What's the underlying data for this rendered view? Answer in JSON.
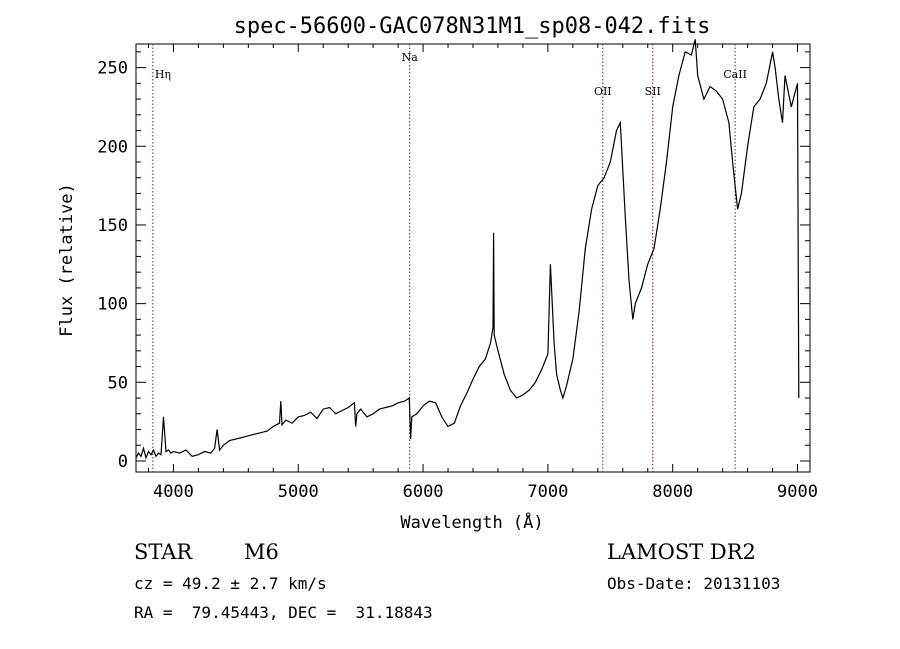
{
  "info": {
    "object_class": "STAR",
    "subclass": "M6",
    "survey": "LAMOST DR2",
    "cz": "cz = 49.2 ± 2.7 km/s",
    "obs_date": "Obs-Date: 20131103",
    "coords": "RA =  79.45443, DEC =  31.18843"
  },
  "colors": {
    "spectrum": "#000000",
    "line_marker": "#8b1a1a",
    "axes": "#000000"
  },
  "chart_data": {
    "type": "line",
    "title": "spec-56600-GAC078N31M1_sp08-042.fits",
    "xlabel": "Wavelength (Å)",
    "ylabel": "Flux (relative)",
    "xlim": [
      3700,
      9100
    ],
    "ylim": [
      -7,
      265
    ],
    "xticks": [
      4000,
      5000,
      6000,
      7000,
      8000,
      9000
    ],
    "yticks": [
      0,
      50,
      100,
      150,
      200,
      250
    ],
    "grid": false,
    "legend": "none",
    "series": [
      {
        "x": [
          3700,
          3720,
          3740,
          3760,
          3780,
          3800,
          3820,
          3840,
          3860,
          3880,
          3900,
          3920,
          3940,
          3960,
          3980,
          4000,
          4050,
          4100,
          4150,
          4200,
          4250,
          4300,
          4330,
          4350,
          4370,
          4400,
          4450,
          4500,
          4550,
          4600,
          4650,
          4700,
          4750,
          4800,
          4850,
          4860,
          4870,
          4900,
          4950,
          5000,
          5050,
          5100,
          5150,
          5200,
          5250,
          5300,
          5350,
          5400,
          5450,
          5460,
          5470,
          5500,
          5550,
          5600,
          5650,
          5700,
          5750,
          5800,
          5850,
          5890,
          5900,
          5910,
          5950,
          6000,
          6050,
          6100,
          6150,
          6200,
          6250,
          6300,
          6350,
          6400,
          6450,
          6500,
          6540,
          6560,
          6565,
          6570,
          6600,
          6650,
          6700,
          6750,
          6800,
          6850,
          6900,
          6950,
          7000,
          7020,
          7050,
          7070,
          7100,
          7120,
          7150,
          7200,
          7250,
          7300,
          7350,
          7400,
          7450,
          7500,
          7550,
          7580,
          7600,
          7620,
          7650,
          7680,
          7700,
          7750,
          7800,
          7850,
          7900,
          7950,
          8000,
          8050,
          8100,
          8150,
          8180,
          8200,
          8250,
          8300,
          8350,
          8400,
          8450,
          8480,
          8500,
          8520,
          8550,
          8600,
          8650,
          8700,
          8750,
          8800,
          8820,
          8850,
          8880,
          8900,
          8950,
          9000,
          9010
        ],
        "values": [
          2,
          5,
          3,
          8,
          2,
          6,
          4,
          7,
          3,
          5,
          4,
          28,
          6,
          7,
          5,
          6,
          5,
          7,
          3,
          4,
          6,
          5,
          8,
          20,
          7,
          10,
          13,
          14,
          15,
          16,
          17,
          18,
          19,
          22,
          24,
          38,
          23,
          26,
          24,
          28,
          29,
          31,
          27,
          33,
          34,
          30,
          32,
          34,
          37,
          22,
          30,
          33,
          28,
          30,
          33,
          34,
          35,
          37,
          38,
          40,
          14,
          28,
          30,
          35,
          38,
          37,
          28,
          22,
          24,
          35,
          43,
          52,
          60,
          65,
          75,
          85,
          145,
          80,
          70,
          55,
          45,
          40,
          42,
          45,
          50,
          58,
          68,
          125,
          75,
          55,
          45,
          40,
          48,
          65,
          95,
          135,
          160,
          175,
          180,
          190,
          210,
          215,
          185,
          155,
          115,
          90,
          100,
          110,
          125,
          135,
          160,
          190,
          225,
          245,
          260,
          258,
          268,
          245,
          230,
          238,
          235,
          230,
          215,
          190,
          175,
          160,
          170,
          200,
          225,
          230,
          240,
          260,
          250,
          230,
          215,
          245,
          225,
          240,
          40
        ]
      }
    ],
    "lines": [
      {
        "label": "Hη",
        "wavelength": 3835
      },
      {
        "label": "Na",
        "wavelength": 5893
      },
      {
        "label": "OII",
        "wavelength": 7440
      },
      {
        "label": "SII",
        "wavelength": 7840
      },
      {
        "label": "CaII",
        "wavelength": 8500
      }
    ]
  }
}
